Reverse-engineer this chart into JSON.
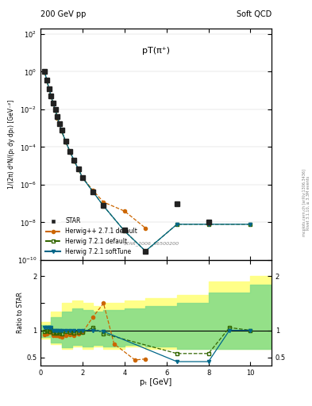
{
  "title_left": "200 GeV pp",
  "title_right": "Soft QCD",
  "plot_title": "pT(π⁺)",
  "ylabel_main": "1/(2π) d²N/(pₜ dy dpₜ) [GeV⁻²]",
  "ylabel_ratio": "Ratio to STAR",
  "xlabel": "pₜ [GeV]",
  "watermark": "STAR_2006_S6500200",
  "right_label": "mcplots.cern.ch [arXiv:1306.3436]",
  "right_label2": "Rivet 3.1.10, ≥ 3.3M events",
  "star_pt": [
    0.2,
    0.3,
    0.4,
    0.5,
    0.6,
    0.7,
    0.8,
    0.9,
    1.0,
    1.2,
    1.4,
    1.6,
    1.8,
    2.0,
    2.5,
    3.0,
    4.0,
    5.0,
    6.5,
    8.0
  ],
  "star_val": [
    1.0,
    0.35,
    0.13,
    0.05,
    0.022,
    0.01,
    0.004,
    0.0018,
    0.0008,
    0.0002,
    6e-05,
    2e-05,
    7e-06,
    2.5e-06,
    4e-07,
    8e-08,
    4e-09,
    3e-10,
    1e-07,
    1e-08
  ],
  "star_err": [
    0.05,
    0.02,
    0.007,
    0.003,
    0.001,
    0.0005,
    0.0002,
    9e-05,
    4e-05,
    1e-05,
    3e-06,
    1e-06,
    4e-07,
    1.5e-07,
    2.5e-08,
    6e-09,
    5e-10,
    4e-11,
    2e-08,
    2e-09
  ],
  "hpp_pt": [
    0.2,
    0.3,
    0.4,
    0.5,
    0.6,
    0.7,
    0.8,
    0.9,
    1.0,
    1.2,
    1.4,
    1.6,
    1.8,
    2.0,
    2.5,
    3.0,
    4.0,
    5.0
  ],
  "hpp_val": [
    0.92,
    0.33,
    0.125,
    0.048,
    0.02,
    0.009,
    0.0036,
    0.0016,
    0.0007,
    0.00018,
    5.5e-05,
    1.8e-05,
    6.5e-06,
    2.4e-06,
    5e-07,
    1.2e-07,
    4e-08,
    5e-09
  ],
  "h721_pt": [
    0.2,
    0.3,
    0.4,
    0.5,
    0.6,
    0.7,
    0.8,
    0.9,
    1.0,
    1.2,
    1.4,
    1.6,
    1.8,
    2.0,
    2.5,
    3.0,
    4.0,
    5.0,
    6.5,
    8.0,
    10.0
  ],
  "h721_val": [
    0.98,
    0.345,
    0.128,
    0.051,
    0.021,
    0.0095,
    0.0038,
    0.0017,
    0.00075,
    0.000195,
    5.8e-05,
    1.9e-05,
    6.8e-06,
    2.4e-06,
    4.2e-07,
    7.5e-08,
    3.5e-09,
    3e-10,
    8e-09,
    8e-09,
    8e-09
  ],
  "h721s_pt": [
    0.2,
    0.3,
    0.4,
    0.5,
    0.6,
    0.7,
    0.8,
    0.9,
    1.0,
    1.2,
    1.4,
    1.6,
    1.8,
    2.0,
    2.5,
    3.0,
    4.0,
    5.0,
    6.5,
    8.0,
    10.0
  ],
  "h721s_val": [
    0.98,
    0.345,
    0.128,
    0.051,
    0.021,
    0.0095,
    0.0038,
    0.0017,
    0.00075,
    0.000195,
    5.8e-05,
    1.9e-05,
    6.8e-06,
    2.4e-06,
    4.2e-07,
    7.5e-08,
    3.5e-09,
    3e-10,
    8e-09,
    8e-09,
    8e-09
  ],
  "ratio_hpp_pt": [
    0.2,
    0.3,
    0.4,
    0.5,
    0.6,
    0.7,
    0.8,
    0.9,
    1.0,
    1.2,
    1.4,
    1.6,
    1.8,
    2.0,
    2.5,
    3.0,
    3.5,
    4.5,
    5.0
  ],
  "ratio_hpp_val": [
    0.92,
    0.94,
    0.96,
    0.96,
    0.91,
    0.9,
    0.9,
    0.89,
    0.875,
    0.9,
    0.92,
    0.9,
    0.93,
    0.96,
    1.25,
    1.5,
    0.75,
    0.45,
    0.47
  ],
  "ratio_h721_pt": [
    0.2,
    0.3,
    0.4,
    0.5,
    0.6,
    0.7,
    0.8,
    0.9,
    1.0,
    1.2,
    1.4,
    1.6,
    1.8,
    2.0,
    2.5,
    3.0,
    6.5,
    8.0,
    9.0,
    10.0
  ],
  "ratio_h721_val": [
    0.98,
    0.986,
    0.985,
    1.02,
    0.955,
    0.95,
    0.95,
    0.944,
    0.9375,
    0.975,
    0.967,
    0.95,
    0.971,
    0.96,
    1.05,
    0.9375,
    0.57,
    0.57,
    1.05,
    1.0
  ],
  "ratio_h721s_pt": [
    0.2,
    0.3,
    0.4,
    0.5,
    0.6,
    0.7,
    0.8,
    0.9,
    1.0,
    1.2,
    1.4,
    1.6,
    1.8,
    2.0,
    2.5,
    3.0,
    6.5,
    8.0,
    9.0,
    10.0
  ],
  "ratio_h721s_val": [
    1.05,
    1.05,
    1.05,
    1.05,
    1.0,
    0.99,
    0.99,
    0.99,
    0.99,
    1.0,
    1.0,
    1.0,
    1.0,
    1.0,
    1.0,
    0.98,
    0.42,
    0.42,
    1.0,
    1.0
  ],
  "band_yellow_x": [
    0.0,
    0.5,
    1.0,
    1.5,
    2.0,
    2.5,
    3.0,
    4.0,
    5.0,
    6.5,
    8.0,
    10.0,
    11.0
  ],
  "band_yellow_lo": [
    0.85,
    0.75,
    0.65,
    0.7,
    0.65,
    0.7,
    0.65,
    0.7,
    0.65,
    0.65,
    0.65,
    0.65,
    0.65
  ],
  "band_yellow_hi": [
    1.15,
    1.35,
    1.5,
    1.55,
    1.5,
    1.45,
    1.5,
    1.55,
    1.6,
    1.65,
    1.9,
    2.0,
    2.0
  ],
  "band_green_x": [
    0.0,
    0.5,
    1.0,
    1.5,
    2.0,
    2.5,
    3.0,
    4.0,
    5.0,
    6.5,
    8.0,
    10.0,
    11.0
  ],
  "band_green_lo": [
    0.88,
    0.78,
    0.68,
    0.73,
    0.7,
    0.73,
    0.7,
    0.73,
    0.7,
    0.65,
    0.65,
    0.65,
    0.65
  ],
  "band_green_hi": [
    1.1,
    1.25,
    1.35,
    1.4,
    1.38,
    1.35,
    1.38,
    1.4,
    1.45,
    1.5,
    1.7,
    1.85,
    1.85
  ],
  "color_star": "#222222",
  "color_hpp": "#cc6600",
  "color_h721": "#336600",
  "color_h721s": "#006688",
  "color_yellow": "#ffff88",
  "color_green": "#88dd88",
  "ylim_main": [
    1e-10,
    200
  ],
  "ylim_ratio": [
    0.35,
    2.3
  ],
  "xlim": [
    0,
    11
  ]
}
